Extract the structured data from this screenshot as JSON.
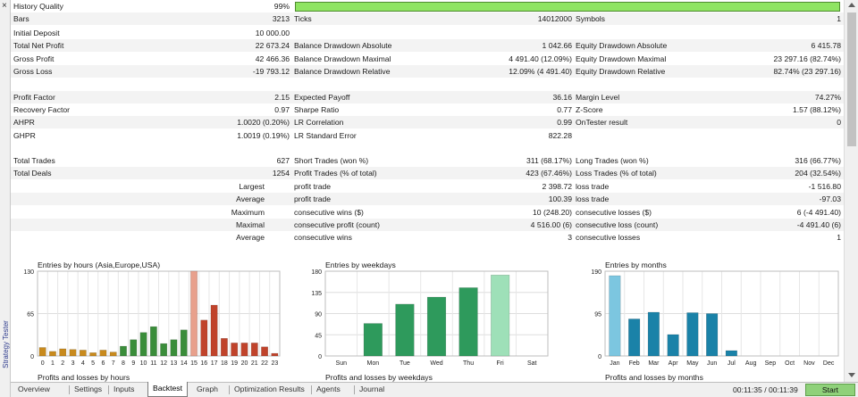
{
  "side_panel": {
    "label": "Strategy Tester",
    "close_glyph": "×"
  },
  "history": {
    "label": "History Quality",
    "value": "99%",
    "bar_fraction": 0.99,
    "bar_color": "#8fe462"
  },
  "rows": [
    {
      "y": 14,
      "shade": true,
      "c": [
        [
          "Bars",
          "3213"
        ],
        [
          "Ticks",
          "14012000"
        ],
        [
          "Symbols",
          "1"
        ]
      ]
    },
    {
      "y": 30,
      "shade": false,
      "c": [
        [
          "Initial Deposit",
          "10 000.00"
        ],
        [
          "",
          ""
        ],
        [
          "",
          ""
        ]
      ]
    },
    {
      "y": 44,
      "shade": true,
      "c": [
        [
          "Total Net Profit",
          "22 673.24"
        ],
        [
          "Balance Drawdown Absolute",
          "1 042.66"
        ],
        [
          "Equity Drawdown Absolute",
          "6 415.78"
        ]
      ]
    },
    {
      "y": 59,
      "shade": false,
      "c": [
        [
          "Gross Profit",
          "42 466.36"
        ],
        [
          "Balance Drawdown Maximal",
          "4 491.40 (12.09%)"
        ],
        [
          "Equity Drawdown Maximal",
          "23 297.16 (82.74%)"
        ]
      ]
    },
    {
      "y": 73,
      "shade": true,
      "c": [
        [
          "Gross Loss",
          "-19 793.12"
        ],
        [
          "Balance Drawdown Relative",
          "12.09% (4 491.40)"
        ],
        [
          "Equity Drawdown Relative",
          "82.74% (23 297.16)"
        ]
      ]
    },
    {
      "y": 102,
      "shade": true,
      "c": [
        [
          "Profit Factor",
          "2.15"
        ],
        [
          "Expected Payoff",
          "36.16"
        ],
        [
          "Margin Level",
          "74.27%"
        ]
      ]
    },
    {
      "y": 116,
      "shade": false,
      "c": [
        [
          "Recovery Factor",
          "0.97"
        ],
        [
          "Sharpe Ratio",
          "0.77"
        ],
        [
          "Z-Score",
          "1.57 (88.12%)"
        ]
      ]
    },
    {
      "y": 130,
      "shade": true,
      "c": [
        [
          "AHPR",
          "1.0020 (0.20%)"
        ],
        [
          "LR Correlation",
          "0.99"
        ],
        [
          "OnTester result",
          "0"
        ]
      ]
    },
    {
      "y": 145,
      "shade": false,
      "c": [
        [
          "GHPR",
          "1.0019 (0.19%)"
        ],
        [
          "LR Standard Error",
          "822.28"
        ],
        [
          "",
          ""
        ]
      ]
    },
    {
      "y": 173,
      "shade": false,
      "c": [
        [
          "Total Trades",
          "627"
        ],
        [
          "Short Trades (won %)",
          "311 (68.17%)"
        ],
        [
          "Long Trades (won %)",
          "316 (66.77%)"
        ]
      ]
    },
    {
      "y": 187,
      "shade": true,
      "c": [
        [
          "Total Deals",
          "1254"
        ],
        [
          "Profit Trades (% of total)",
          "423 (67.46%)"
        ],
        [
          "Loss Trades (% of total)",
          "204 (32.54%)"
        ]
      ]
    },
    {
      "y": 202,
      "shade": false,
      "r": "Largest",
      "c": [
        [
          "",
          ""
        ],
        [
          "profit trade",
          "2 398.72"
        ],
        [
          "loss trade",
          "-1 516.80"
        ]
      ]
    },
    {
      "y": 216,
      "shade": true,
      "r": "Average",
      "c": [
        [
          "",
          ""
        ],
        [
          "profit trade",
          "100.39"
        ],
        [
          "loss trade",
          "-97.03"
        ]
      ]
    },
    {
      "y": 231,
      "shade": false,
      "r": "Maximum",
      "c": [
        [
          "",
          ""
        ],
        [
          "consecutive wins ($)",
          "10 (248.20)"
        ],
        [
          "consecutive losses ($)",
          "6 (-4 491.40)"
        ]
      ]
    },
    {
      "y": 245,
      "shade": true,
      "r": "Maximal",
      "c": [
        [
          "",
          ""
        ],
        [
          "consecutive profit (count)",
          "4 516.00 (6)"
        ],
        [
          "consecutive loss (count)",
          "-4 491.40 (6)"
        ]
      ]
    },
    {
      "y": 259,
      "shade": false,
      "r": "Average",
      "c": [
        [
          "",
          ""
        ],
        [
          "consecutive wins",
          "3"
        ],
        [
          "consecutive losses",
          "1"
        ]
      ]
    }
  ],
  "chart_data": [
    {
      "type": "bar",
      "title": "Entries by hours (Asia,Europe,USA)",
      "subtitle": "Profits and losses by hours",
      "categories": [
        "0",
        "1",
        "2",
        "3",
        "4",
        "5",
        "6",
        "7",
        "8",
        "9",
        "10",
        "11",
        "12",
        "13",
        "14",
        "15",
        "16",
        "17",
        "18",
        "19",
        "20",
        "21",
        "22",
        "23"
      ],
      "values": [
        13,
        7,
        11,
        10,
        9,
        5,
        9,
        6,
        15,
        25,
        36,
        45,
        19,
        25,
        40,
        130,
        55,
        78,
        27,
        20,
        20,
        20,
        14,
        4
      ],
      "colors": [
        "#c88a1d",
        "#c88a1d",
        "#c88a1d",
        "#c88a1d",
        "#c88a1d",
        "#c88a1d",
        "#c88a1d",
        "#c88a1d",
        "#3a8d3a",
        "#3a8d3a",
        "#3a8d3a",
        "#3a8d3a",
        "#3a8d3a",
        "#3a8d3a",
        "#3a8d3a",
        "#e8a08c",
        "#c0432b",
        "#c0432b",
        "#c0432b",
        "#c0432b",
        "#c0432b",
        "#c0432b",
        "#c0432b",
        "#c0432b"
      ],
      "yticks": [
        0,
        65,
        130
      ],
      "ylim": [
        0,
        130
      ],
      "grid": true
    },
    {
      "type": "bar",
      "title": "Entries by weekdays",
      "subtitle": "Profits and losses by weekdays",
      "categories": [
        "Sun",
        "Mon",
        "Tue",
        "Wed",
        "Thu",
        "Fri",
        "Sat"
      ],
      "values": [
        0,
        69,
        110,
        125,
        145,
        172,
        0
      ],
      "colors": [
        "#2e9a5c",
        "#2e9a5c",
        "#2e9a5c",
        "#2e9a5c",
        "#2e9a5c",
        "#9ee0b8",
        "#2e9a5c"
      ],
      "yticks": [
        0,
        45,
        90,
        135,
        180
      ],
      "ylim": [
        0,
        180
      ],
      "grid": true
    },
    {
      "type": "bar",
      "title": "Entries by months",
      "subtitle": "Profits and losses by months",
      "categories": [
        "Jan",
        "Feb",
        "Mar",
        "Apr",
        "May",
        "Jun",
        "Jul",
        "Aug",
        "Sep",
        "Oct",
        "Nov",
        "Dec"
      ],
      "values": [
        180,
        83,
        98,
        48,
        97,
        95,
        12,
        0,
        0,
        0,
        0,
        0
      ],
      "colors": [
        "#7cc6e0",
        "#1a82a8",
        "#1a82a8",
        "#1a82a8",
        "#1a82a8",
        "#1a82a8",
        "#1a82a8",
        "#1a82a8",
        "#1a82a8",
        "#1a82a8",
        "#1a82a8",
        "#1a82a8"
      ],
      "yticks": [
        0,
        95,
        190
      ],
      "ylim": [
        0,
        190
      ],
      "grid": true
    }
  ],
  "tabs": [
    {
      "label": "Overview",
      "active": false
    },
    {
      "label": "Settings",
      "active": false
    },
    {
      "label": "Inputs",
      "active": false
    },
    {
      "label": "Backtest",
      "active": true
    },
    {
      "label": "Graph",
      "active": false
    },
    {
      "label": "Optimization Results",
      "active": false
    },
    {
      "label": "Agents",
      "active": false
    },
    {
      "label": "Journal",
      "active": false
    }
  ],
  "status": {
    "timer": "00:11:35 / 00:11:39",
    "start_label": "Start",
    "start_color": "#8fd17a"
  }
}
